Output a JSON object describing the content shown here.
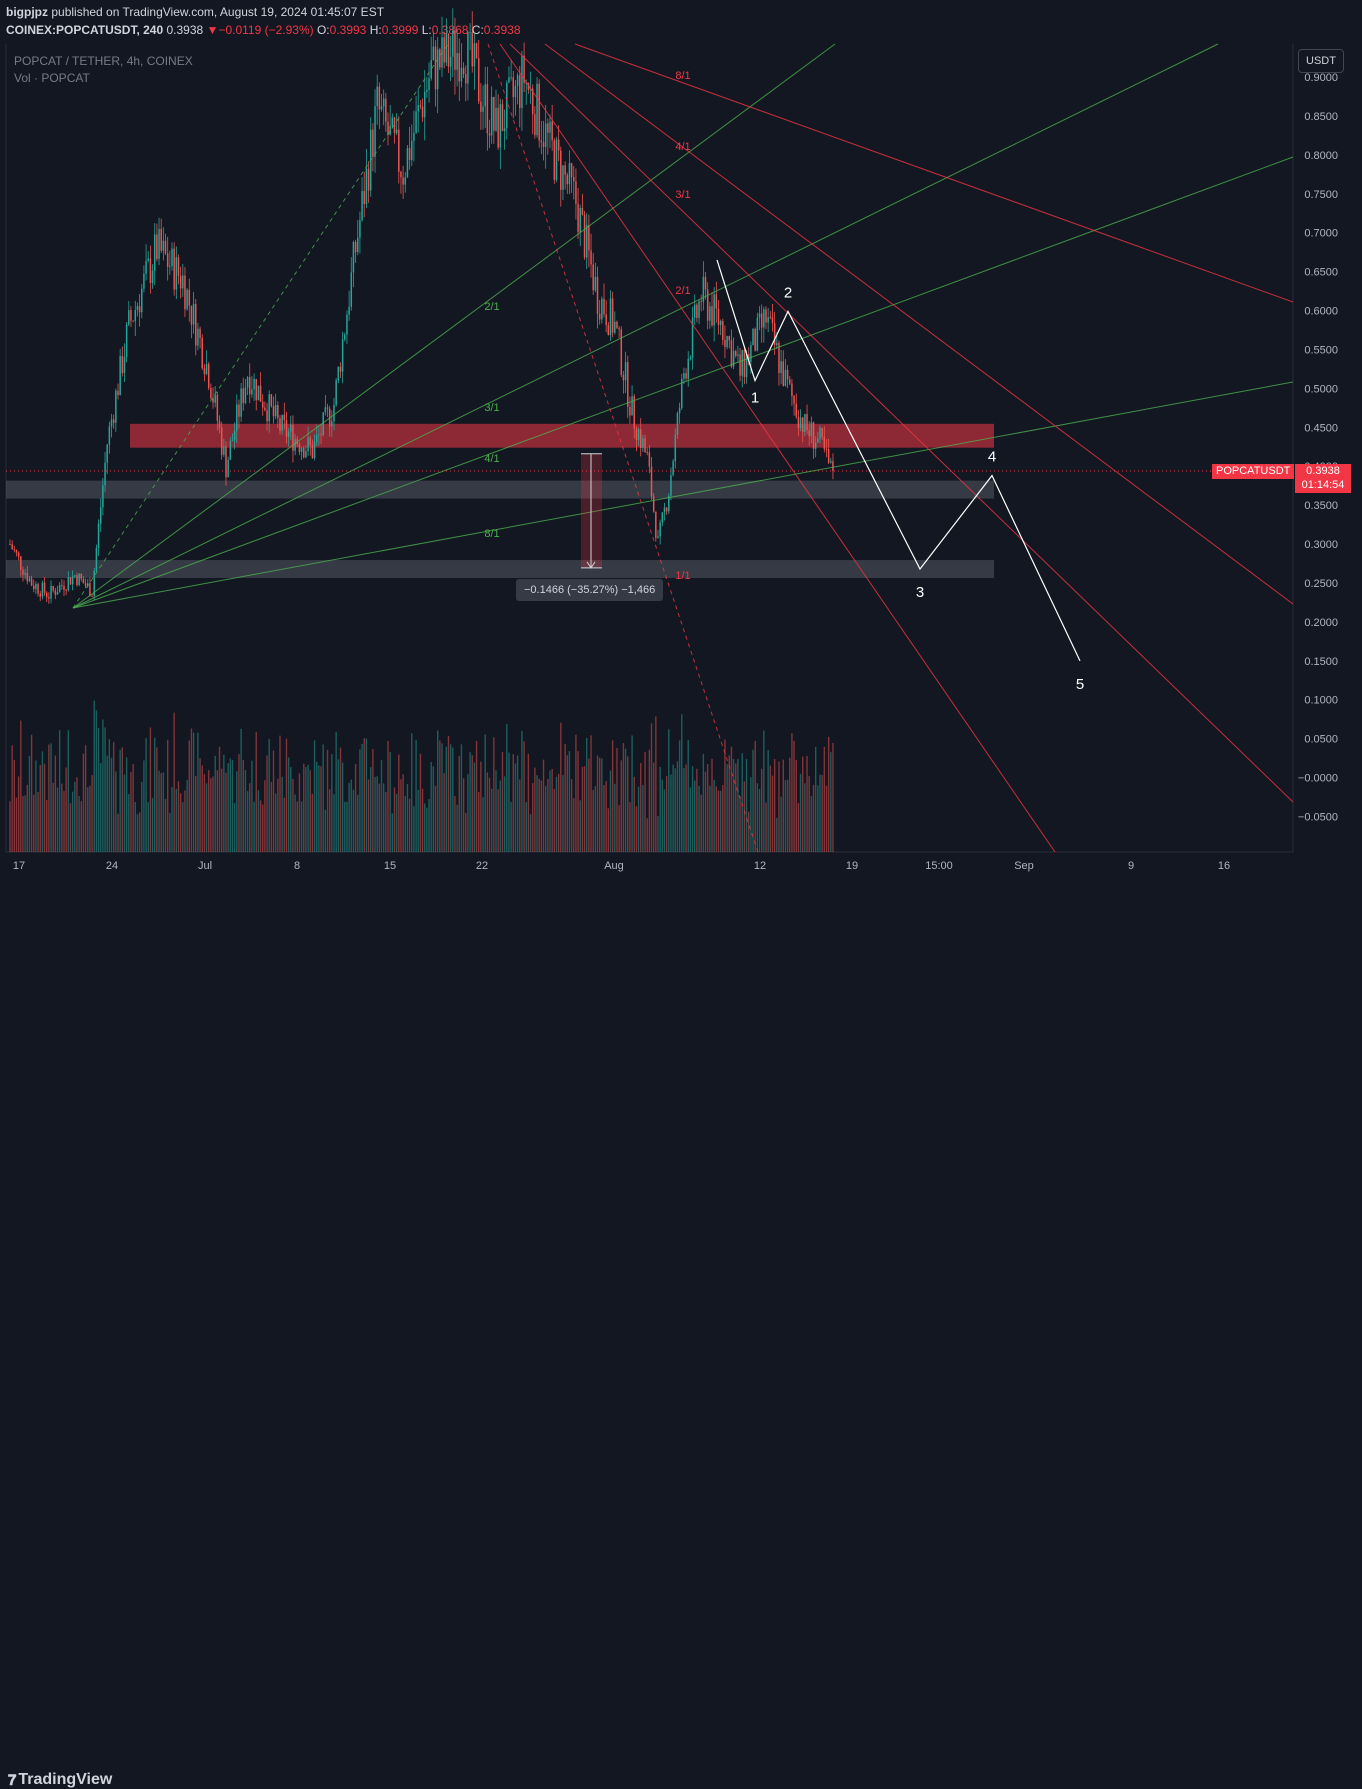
{
  "header": {
    "author": "bigpjpz",
    "published_text": "published on TradingView.com, August 19, 2024 01:45:07 EST",
    "symbol_line": "COINEX:POPCATUSDT, 240",
    "last": "0.3938",
    "change_arrow": "▼",
    "change": "−0.0119 (−2.93%)",
    "o_label": "O:",
    "o_value": "0.3993",
    "h_label": "H:",
    "h_value": "0.3999",
    "l_label": "L:",
    "l_value": "0.3868",
    "c_label": "C:",
    "c_value": "0.3938"
  },
  "legend": {
    "title": "POPCAT / TETHER, 4h, COINEX",
    "volume": "Vol · POPCAT"
  },
  "currency_button": "USDT",
  "price_tag": {
    "symbol": "POPCATUSDT",
    "price": "0.3938",
    "countdown": "01:14:54"
  },
  "measure_label": "−0.1466 (−35.27%) −1,466",
  "brand": {
    "logo_glyph": "𝟕",
    "name": "TradingView"
  },
  "colors": {
    "background": "#131722",
    "up": "#26a69a",
    "down": "#ef5350",
    "fan_green": "#4caf50",
    "fan_red": "#f23645",
    "zone_red": "#f23645",
    "zone_grey": "#787b86"
  },
  "chart_data": {
    "type": "candlestick",
    "symbol": "POPCAT / TETHER",
    "interval": "4h",
    "exchange": "COINEX",
    "y_axis": {
      "ticks": [
        "0.9000",
        "0.8500",
        "0.8000",
        "0.7500",
        "0.7000",
        "0.6500",
        "0.6000",
        "0.5500",
        "0.5000",
        "0.4500",
        "0.4000",
        "0.3500",
        "0.3000",
        "0.2500",
        "0.2000",
        "0.1500",
        "0.1000",
        "0.0500",
        "−0.0000",
        "−0.0500"
      ]
    },
    "x_axis": {
      "ticks": [
        "17",
        "24",
        "Jul",
        "8",
        "15",
        "22",
        "Aug",
        "12",
        "19",
        "15:00",
        "Sep",
        "9",
        "16"
      ]
    },
    "price_path": [
      [
        0,
        0.3
      ],
      [
        10,
        0.25
      ],
      [
        18,
        0.235
      ],
      [
        30,
        0.26
      ],
      [
        38,
        0.24
      ],
      [
        45,
        0.43
      ],
      [
        55,
        0.58
      ],
      [
        68,
        0.68
      ],
      [
        80,
        0.64
      ],
      [
        92,
        0.52
      ],
      [
        100,
        0.4
      ],
      [
        110,
        0.52
      ],
      [
        125,
        0.45
      ],
      [
        140,
        0.42
      ],
      [
        150,
        0.48
      ],
      [
        160,
        0.68
      ],
      [
        170,
        0.86
      ],
      [
        182,
        0.78
      ],
      [
        195,
        0.91
      ],
      [
        210,
        0.94
      ],
      [
        225,
        0.83
      ],
      [
        238,
        0.9
      ],
      [
        250,
        0.81
      ],
      [
        262,
        0.74
      ],
      [
        272,
        0.62
      ],
      [
        280,
        0.58
      ],
      [
        288,
        0.47
      ],
      [
        295,
        0.41
      ],
      [
        300,
        0.3
      ],
      [
        305,
        0.37
      ],
      [
        312,
        0.52
      ],
      [
        320,
        0.62
      ],
      [
        330,
        0.58
      ],
      [
        338,
        0.52
      ],
      [
        350,
        0.59
      ],
      [
        360,
        0.5
      ],
      [
        368,
        0.45
      ],
      [
        375,
        0.43
      ],
      [
        380,
        0.3938
      ]
    ],
    "zones": [
      {
        "name": "resistance-zone",
        "color": "red",
        "low": 0.4238,
        "high": 0.4545
      },
      {
        "name": "support-zone-upper",
        "color": "grey",
        "low": 0.3585,
        "high": 0.3815
      },
      {
        "name": "support-zone-lower",
        "color": "grey",
        "low": 0.2564,
        "high": 0.2795
      }
    ],
    "current_price": 0.3938,
    "measure": {
      "from": 0.416,
      "to": 0.2694,
      "label": "−0.1466 (−35.27%) −1,466"
    },
    "gann_fan_green": {
      "labels": [
        "2/1",
        "3/1",
        "4/1",
        "8/1"
      ]
    },
    "gann_fan_red": {
      "labels": [
        "8/1",
        "4/1",
        "3/1",
        "2/1",
        "1/1"
      ]
    },
    "elliott_wave": {
      "labels": [
        "1",
        "2",
        "3",
        "4",
        "5"
      ],
      "points": [
        {
          "label": "",
          "price": 0.665
        },
        {
          "label": "1",
          "price": 0.51
        },
        {
          "label": "2",
          "price": 0.599
        },
        {
          "label": "3",
          "price": 0.268
        },
        {
          "label": "4",
          "price": 0.388
        },
        {
          "label": "5",
          "price": 0.15
        }
      ]
    }
  }
}
